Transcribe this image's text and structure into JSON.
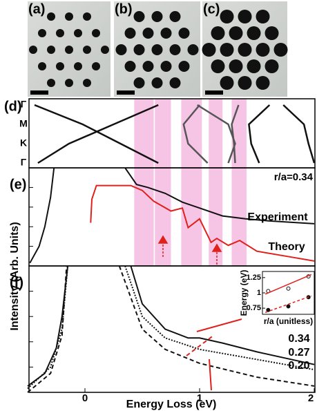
{
  "panels": [
    {
      "label": "(a)",
      "hole_r": 6
    },
    {
      "label": "(b)",
      "hole_r": 8
    },
    {
      "label": "(c)",
      "hole_r": 10
    }
  ],
  "chart_data": [
    {
      "type": "band",
      "label": "(d)",
      "categories": [
        "Γ",
        "M",
        "K",
        "Γ"
      ],
      "xlim": [
        -0.49,
        2
      ],
      "highlight_ranges": [
        [
          0.43,
          0.6
        ],
        [
          0.61,
          0.75
        ],
        [
          0.84,
          1.02
        ],
        [
          1.08,
          1.2
        ],
        [
          1.28,
          1.41
        ]
      ],
      "highlight_color": "#f6c4e4",
      "series": [
        {
          "color": "#111",
          "values": [
            -0.44,
            -0.02,
            0.31,
            0.64
          ]
        },
        {
          "color": "#111",
          "values": [
            0.64,
            0.25,
            -0.14,
            -0.41
          ]
        },
        {
          "color": "#555",
          "values": [
            1.0,
            0.86,
            0.9,
            1.07
          ]
        },
        {
          "color": "#555",
          "values": [
            0.98,
            1.25,
            1.31,
            1.25
          ]
        },
        {
          "color": "#555",
          "values": [
            1.34,
            1.28,
            1.3,
            1.31
          ]
        },
        {
          "color": "#111",
          "values": [
            1.61,
            1.43,
            1.45,
            1.52
          ]
        },
        {
          "color": "#111",
          "values": [
            1.73,
            1.91,
            1.95,
            2.0
          ]
        }
      ]
    },
    {
      "type": "line",
      "label": "(e)",
      "annotation": "r/a=0.34",
      "xlim": [
        -0.49,
        2
      ],
      "ylim": [
        0,
        10
      ],
      "series": [
        {
          "name": "Experiment",
          "color": "#111",
          "dash": "solid",
          "x": [
            -0.48,
            -0.4,
            -0.35,
            -0.3,
            -0.27,
            null,
            0.35,
            0.45,
            0.55,
            0.7,
            0.85,
            1.0,
            1.2,
            1.4,
            1.6,
            2.0
          ],
          "values": [
            0.3,
            2,
            4,
            7,
            10,
            null,
            10,
            8.3,
            8.0,
            7.4,
            6.5,
            5.9,
            5.1,
            4.8,
            4.6,
            4.3
          ]
        },
        {
          "name": "Theory",
          "color": "#e0201b",
          "dash": "solid",
          "x": [
            0.05,
            0.06,
            0.1,
            0.4,
            0.5,
            0.6,
            0.75,
            0.85,
            0.9,
            1.0,
            1.1,
            1.15,
            1.25,
            1.35,
            1.5,
            1.8,
            2.0
          ],
          "values": [
            4.4,
            6.8,
            8.2,
            8.2,
            7.7,
            6.6,
            5.6,
            5.9,
            3.9,
            4.8,
            2.4,
            2.8,
            2.1,
            2.6,
            1.5,
            0.9,
            0.5
          ]
        }
      ]
    },
    {
      "type": "line",
      "label": "(f)",
      "xlabel": "Energy Loss (eV)",
      "ylabel": "Intensity (Arb. Units)",
      "xlim": [
        -0.49,
        2
      ],
      "ylim": [
        0,
        10
      ],
      "xticks": [
        0,
        1,
        2
      ],
      "series": [
        {
          "name": "0.34",
          "color": "#111",
          "dash": "solid",
          "x": [
            -0.5,
            -0.35,
            -0.25,
            -0.2,
            -0.15,
            null,
            0.4,
            0.5,
            0.7,
            0.9,
            1.0,
            1.2,
            1.5,
            2.0
          ],
          "values": [
            0.5,
            1.5,
            3.5,
            6,
            10,
            null,
            10,
            7,
            5,
            4.3,
            4.3,
            3.9,
            3.2,
            2.2
          ]
        },
        {
          "name": "0.27",
          "color": "#111",
          "dash": "dotted",
          "x": [
            -0.5,
            -0.3,
            -0.2,
            -0.15,
            null,
            0.35,
            0.5,
            0.7,
            1.0,
            1.5,
            2.0
          ],
          "values": [
            0.3,
            2,
            5,
            10,
            null,
            10,
            6,
            4.3,
            3.4,
            2.6,
            1.8
          ]
        },
        {
          "name": "0.20",
          "color": "#111",
          "dash": "dashed",
          "x": [
            -0.5,
            -0.3,
            -0.2,
            -0.16,
            null,
            0.3,
            0.5,
            0.7,
            1.0,
            1.5,
            2.0
          ],
          "values": [
            0,
            1.5,
            4.5,
            10,
            null,
            10,
            5,
            3.4,
            2.3,
            1.2,
            0.5
          ]
        }
      ]
    },
    {
      "type": "scatter",
      "xlabel": "r/a (unitless)",
      "ylabel": "Energy (eV)",
      "xlim": [
        0.18,
        0.36
      ],
      "ylim": [
        0.65,
        1.35
      ],
      "yticks": [
        0.75,
        1,
        1.25
      ],
      "series": [
        {
          "color": "#111",
          "marker": "open",
          "x": [
            0.2,
            0.27,
            0.34
          ],
          "values": [
            1.03,
            1.07,
            1.27
          ]
        },
        {
          "color": "#111",
          "marker": "filled",
          "x": [
            0.2,
            0.27,
            0.34
          ],
          "values": [
            0.72,
            0.78,
            0.93
          ]
        }
      ]
    }
  ]
}
